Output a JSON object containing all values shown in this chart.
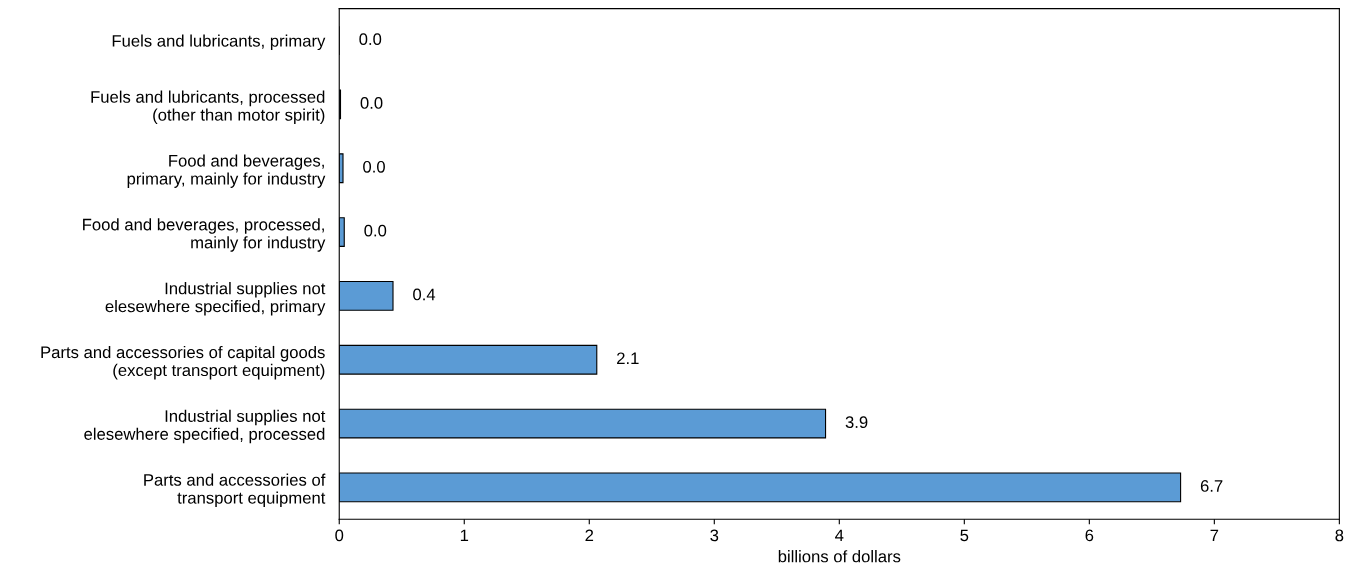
{
  "chart_data": {
    "type": "bar",
    "orientation": "horizontal",
    "xlabel": "billions of dollars",
    "categories": [
      "Fuels and lubricants, primary",
      "Fuels and lubricants, processed\n(other than motor spirit)",
      "Food and beverages,\nprimary, mainly for industry",
      "Food and beverages, processed,\nmainly for industry",
      "Industrial supplies not\nelesewhere specified, primary",
      "Parts and accessories of capital goods\n(except transport equipment)",
      "Industrial supplies not\nelesewhere specified, processed",
      "Parts and accessories of\ntransport equipment"
    ],
    "values": [
      0.0,
      0.01,
      0.03,
      0.04,
      0.43,
      2.06,
      3.89,
      6.73
    ],
    "value_labels": [
      "0.0",
      "0.0",
      "0.0",
      "0.0",
      "0.4",
      "2.1",
      "3.9",
      "6.7"
    ],
    "color": "#5b9bd5",
    "xlim": [
      0,
      8
    ],
    "xticks": [
      0,
      1,
      2,
      3,
      4,
      5,
      6,
      7,
      8
    ],
    "grid": false,
    "legend": false
  }
}
